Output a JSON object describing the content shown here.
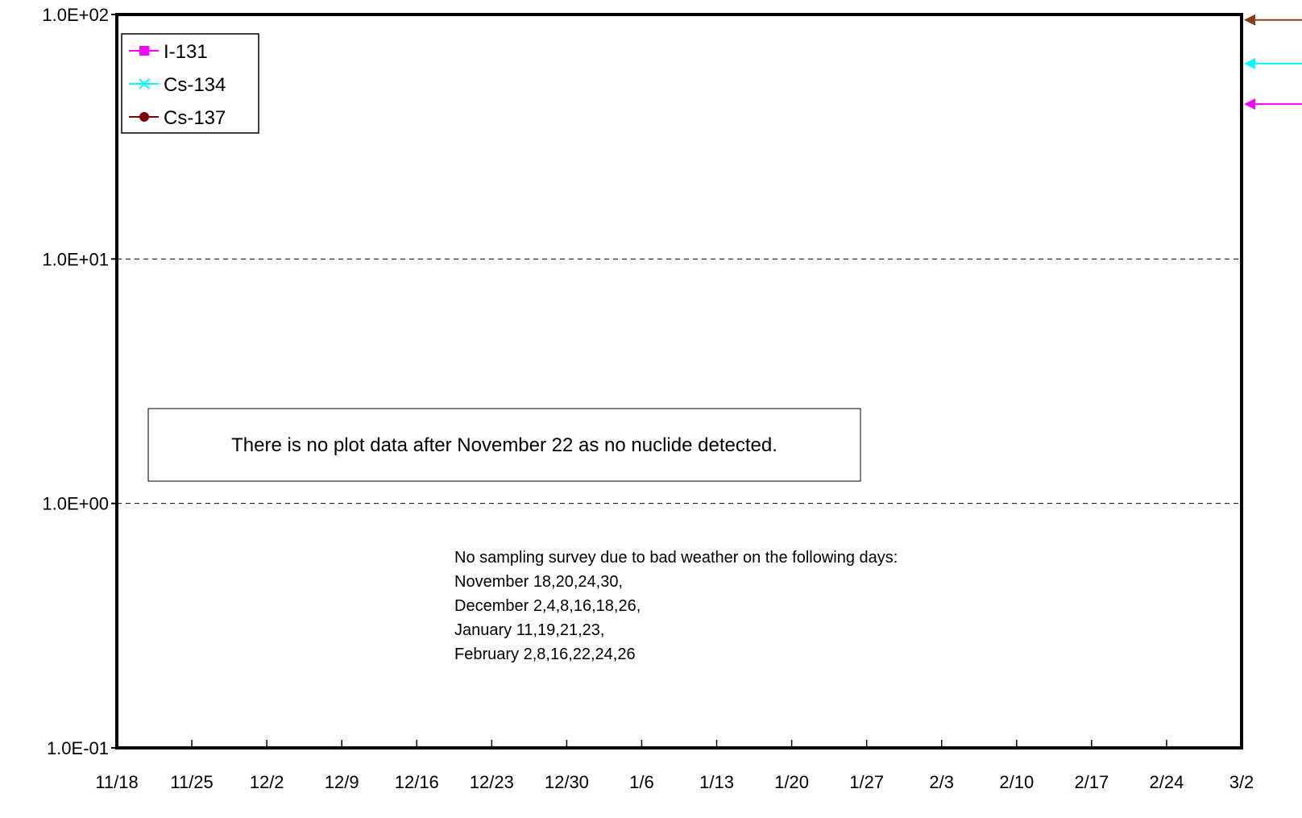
{
  "chart_data": {
    "type": "line",
    "title": "",
    "xlabel": "",
    "ylabel": "",
    "y_scale": "log",
    "ylim": [
      0.1,
      100
    ],
    "y_ticks": [
      "1.0E-01",
      "1.0E+00",
      "1.0E+01",
      "1.0E+02"
    ],
    "y_tick_values": [
      0.1,
      1,
      10,
      100
    ],
    "x_ticks": [
      "11/18",
      "11/25",
      "12/2",
      "12/9",
      "12/16",
      "12/23",
      "12/30",
      "1/6",
      "1/13",
      "1/20",
      "1/27",
      "2/3",
      "2/10",
      "2/17",
      "2/24",
      "3/2"
    ],
    "grid": "horizontal dashed at major y ticks",
    "legend_position": "top-left",
    "series": [
      {
        "name": "I-131",
        "color": "#ff00ff",
        "marker": "square",
        "values": []
      },
      {
        "name": "Cs-134",
        "color": "#00ffff",
        "marker": "x",
        "values": []
      },
      {
        "name": "Cs-137",
        "color": "#800000",
        "marker": "circle",
        "values": []
      }
    ],
    "right_edge_arrows": [
      {
        "series": "Cs-137",
        "y": 95,
        "color": "#8b3a1a"
      },
      {
        "series": "Cs-134",
        "y": 63,
        "color": "#00ffff"
      },
      {
        "series": "I-131",
        "y": 43,
        "color": "#ff00ff"
      }
    ],
    "annotation_box": "There is no plot data after November 22 as no nuclide detected.",
    "annotation_lines": [
      "No sampling survey due to bad weather on the following days:",
      "November 18,20,24,30,",
      "December 2,4,8,16,18,26,",
      "January 11,19,21,23,",
      "February 2,8,16,22,24,26"
    ]
  }
}
